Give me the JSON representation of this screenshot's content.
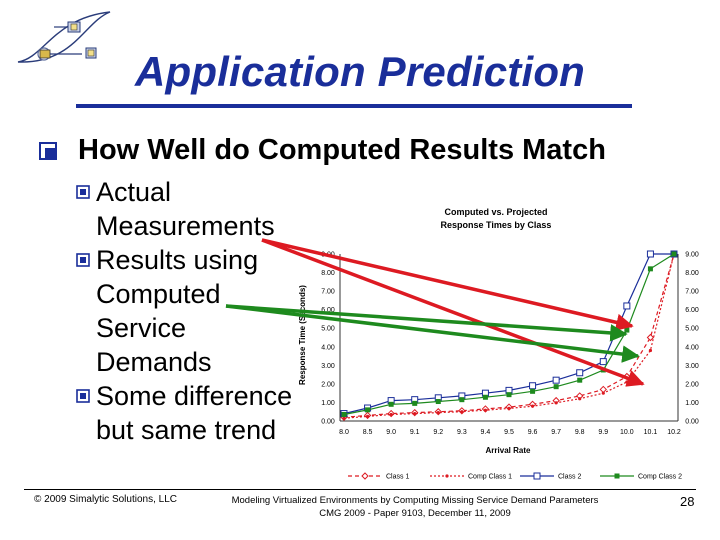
{
  "slide": {
    "title": "Application Prediction",
    "heading": "How Well do Computed Results Match",
    "bullets": [
      "Actual Measurements",
      "Results using Computed Service Demands",
      "Some difference but same trend"
    ],
    "footer": {
      "left": "© 2009 Simalytic Solutions, LLC",
      "center_line1": "Modeling Virtualized Environments by Computing Missing Service Demand Parameters",
      "center_line2": "CMG 2009 - Paper 9103, December 11, 2009",
      "page": "28"
    },
    "colors": {
      "title": "#1a2e9a",
      "arrow_red": "#dd1a22",
      "arrow_green": "#1e8a1e"
    }
  },
  "chart_data": {
    "type": "line",
    "title": "Computed vs. Projected Response Times by Class",
    "title_lines": [
      "Computed vs. Projected",
      "Response Times by Class"
    ],
    "xlabel": "Arrival Rate",
    "ylabel": "Response Time (Seconds)",
    "categories": [
      "8.0",
      "8.5",
      "9.0",
      "9.1",
      "9.2",
      "9.3",
      "9.4",
      "9.5",
      "9.6",
      "9.7",
      "9.8",
      "9.9",
      "10.0",
      "10.1",
      "10.2"
    ],
    "yticks": [
      "0.00",
      "1.00",
      "2.00",
      "3.00",
      "4.00",
      "5.00",
      "6.00",
      "7.00",
      "8.00",
      "9.00"
    ],
    "ylim": [
      0,
      9
    ],
    "legend_position": "bottom",
    "series": [
      {
        "name": "Class 1",
        "color": "#dd1a22",
        "marker": "diamond-open",
        "dash": "4,3",
        "values": [
          0.2,
          0.3,
          0.4,
          0.45,
          0.5,
          0.55,
          0.65,
          0.75,
          0.9,
          1.1,
          1.35,
          1.7,
          2.4,
          4.5,
          9.0
        ]
      },
      {
        "name": "Comp Class 1",
        "color": "#dd1a22",
        "marker": "dot",
        "dash": "2,2",
        "values": [
          0.15,
          0.25,
          0.35,
          0.4,
          0.45,
          0.5,
          0.58,
          0.68,
          0.8,
          0.98,
          1.2,
          1.5,
          2.1,
          3.8,
          9.0
        ]
      },
      {
        "name": "Class 2",
        "color": "#1a2e9a",
        "marker": "square-open",
        "dash": "",
        "values": [
          0.4,
          0.7,
          1.1,
          1.15,
          1.25,
          1.35,
          1.5,
          1.65,
          1.9,
          2.2,
          2.6,
          3.2,
          6.2,
          9.0,
          9.0
        ]
      },
      {
        "name": "Comp Class 2",
        "color": "#1e8a1e",
        "marker": "square",
        "dash": "",
        "values": [
          0.35,
          0.6,
          0.9,
          0.95,
          1.05,
          1.15,
          1.28,
          1.42,
          1.6,
          1.85,
          2.2,
          2.75,
          4.9,
          8.2,
          9.0
        ]
      }
    ]
  }
}
